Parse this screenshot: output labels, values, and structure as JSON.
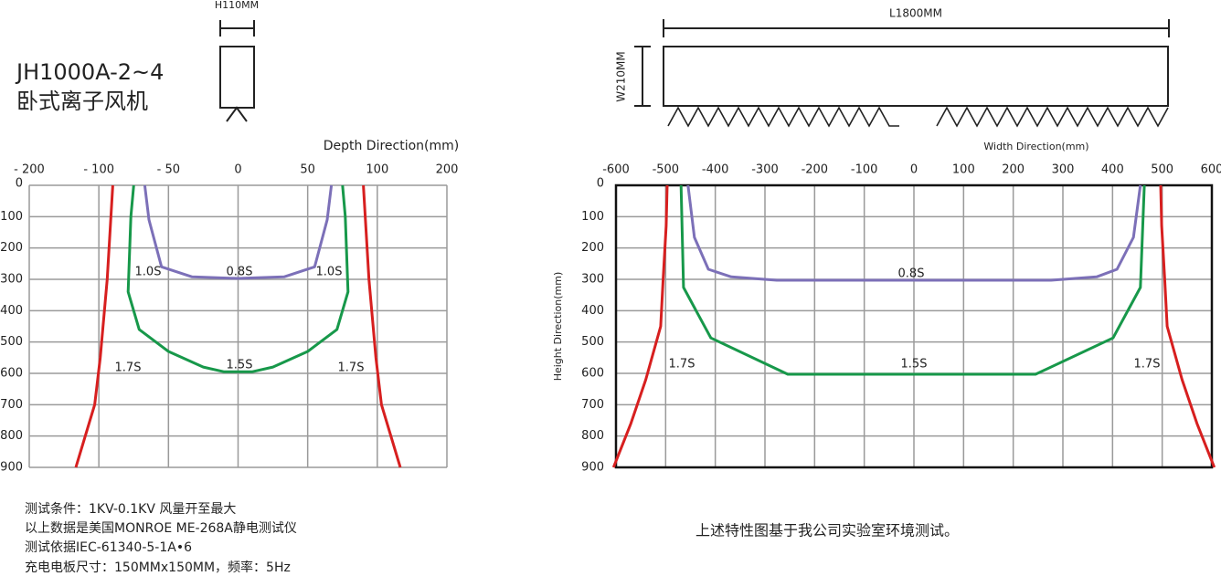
{
  "header": {
    "model": "JH1000A-2~4",
    "name": "卧式离子风机"
  },
  "dimensions": {
    "height": "H110MM",
    "length": "L1800MM",
    "width": "W210MM"
  },
  "chart_data": [
    {
      "type": "line",
      "x_label": "Depth Direction(mm)",
      "xscale": "ticks",
      "grid": true,
      "y_inverted": true,
      "xlim": [
        -200,
        200
      ],
      "xticks": [
        {
          "value": -200,
          "label": "- 200"
        },
        {
          "value": -100,
          "label": "- 100"
        },
        {
          "value": -50,
          "label": "- 50"
        },
        0,
        50,
        100,
        200
      ],
      "ylim": [
        0,
        900
      ],
      "yticks": [
        0,
        100,
        200,
        300,
        400,
        500,
        600,
        700,
        800,
        900
      ],
      "series": [
        {
          "color": "#d71f1f",
          "x": [
            -90,
            -94,
            -99,
            -106,
            -133
          ],
          "values": [
            0,
            300,
            550,
            700,
            900
          ]
        },
        {
          "color": "#d71f1f",
          "x": [
            90,
            94,
            99,
            106,
            133
          ],
          "values": [
            0,
            300,
            550,
            700,
            900
          ]
        },
        {
          "color": "#17984a",
          "x": [
            -75,
            -77,
            -79,
            -71,
            -50,
            -25,
            -10,
            10,
            25,
            50,
            71,
            79,
            77,
            75
          ],
          "values": [
            0,
            100,
            340,
            460,
            530,
            580,
            595,
            595,
            580,
            530,
            460,
            340,
            100,
            0
          ]
        },
        {
          "color": "#7c70b8",
          "x": [
            -67,
            -64,
            -55,
            -33,
            0,
            33,
            55,
            64,
            67
          ],
          "values": [
            0,
            110,
            260,
            292,
            297,
            292,
            260,
            110,
            0
          ]
        }
      ],
      "annotations": [
        "1.0S",
        "0.8S",
        "1.0S",
        "1.5S",
        "1.7S",
        "1.7S"
      ]
    },
    {
      "type": "line",
      "x_label": "Width Direction(mm)",
      "y_label": "Height Direction(mm)",
      "grid": true,
      "y_inverted": true,
      "xlim": [
        -600,
        600
      ],
      "xticks": [
        -600,
        -500,
        -400,
        -300,
        -200,
        -100,
        0,
        100,
        200,
        300,
        400,
        500,
        600
      ],
      "ylim": [
        0,
        900
      ],
      "yticks": [
        0,
        100,
        200,
        300,
        400,
        500,
        600,
        700,
        800,
        900
      ],
      "series": [
        {
          "color": "#d71f1f",
          "x": [
            -497,
            -499,
            -505,
            -510,
            -540,
            -570,
            -605
          ],
          "values": [
            0,
            130,
            300,
            450,
            620,
            760,
            900
          ]
        },
        {
          "color": "#d71f1f",
          "x": [
            497,
            499,
            505,
            510,
            540,
            570,
            605
          ],
          "values": [
            0,
            130,
            300,
            450,
            620,
            760,
            900
          ]
        },
        {
          "color": "#17984a",
          "x": [
            -469,
            -464,
            -409,
            -254,
            245,
            401,
            456,
            464
          ],
          "values": [
            0,
            326,
            487,
            603,
            603,
            487,
            326,
            0
          ]
        },
        {
          "color": "#7c70b8",
          "x": [
            -455,
            -442,
            -414,
            -368,
            -276,
            276,
            368,
            409,
            442,
            456
          ],
          "values": [
            0,
            166,
            268,
            292,
            303,
            303,
            292,
            268,
            166,
            0
          ]
        }
      ],
      "annotations": [
        "0.8S",
        "1.5S",
        "1.7S",
        "1.7S"
      ]
    }
  ],
  "notes": [
    "测试条件：1KV-0.1KV  风量开至最大",
    "以上数据是美国MONROE ME-268A静电测试仪",
    "测试依据IEC-61340-5-1A•6",
    "充电电板尺寸：150MMx150MM，频率：5Hz"
  ],
  "footnote": "上述特性图基于我公司实验室环境测试。"
}
